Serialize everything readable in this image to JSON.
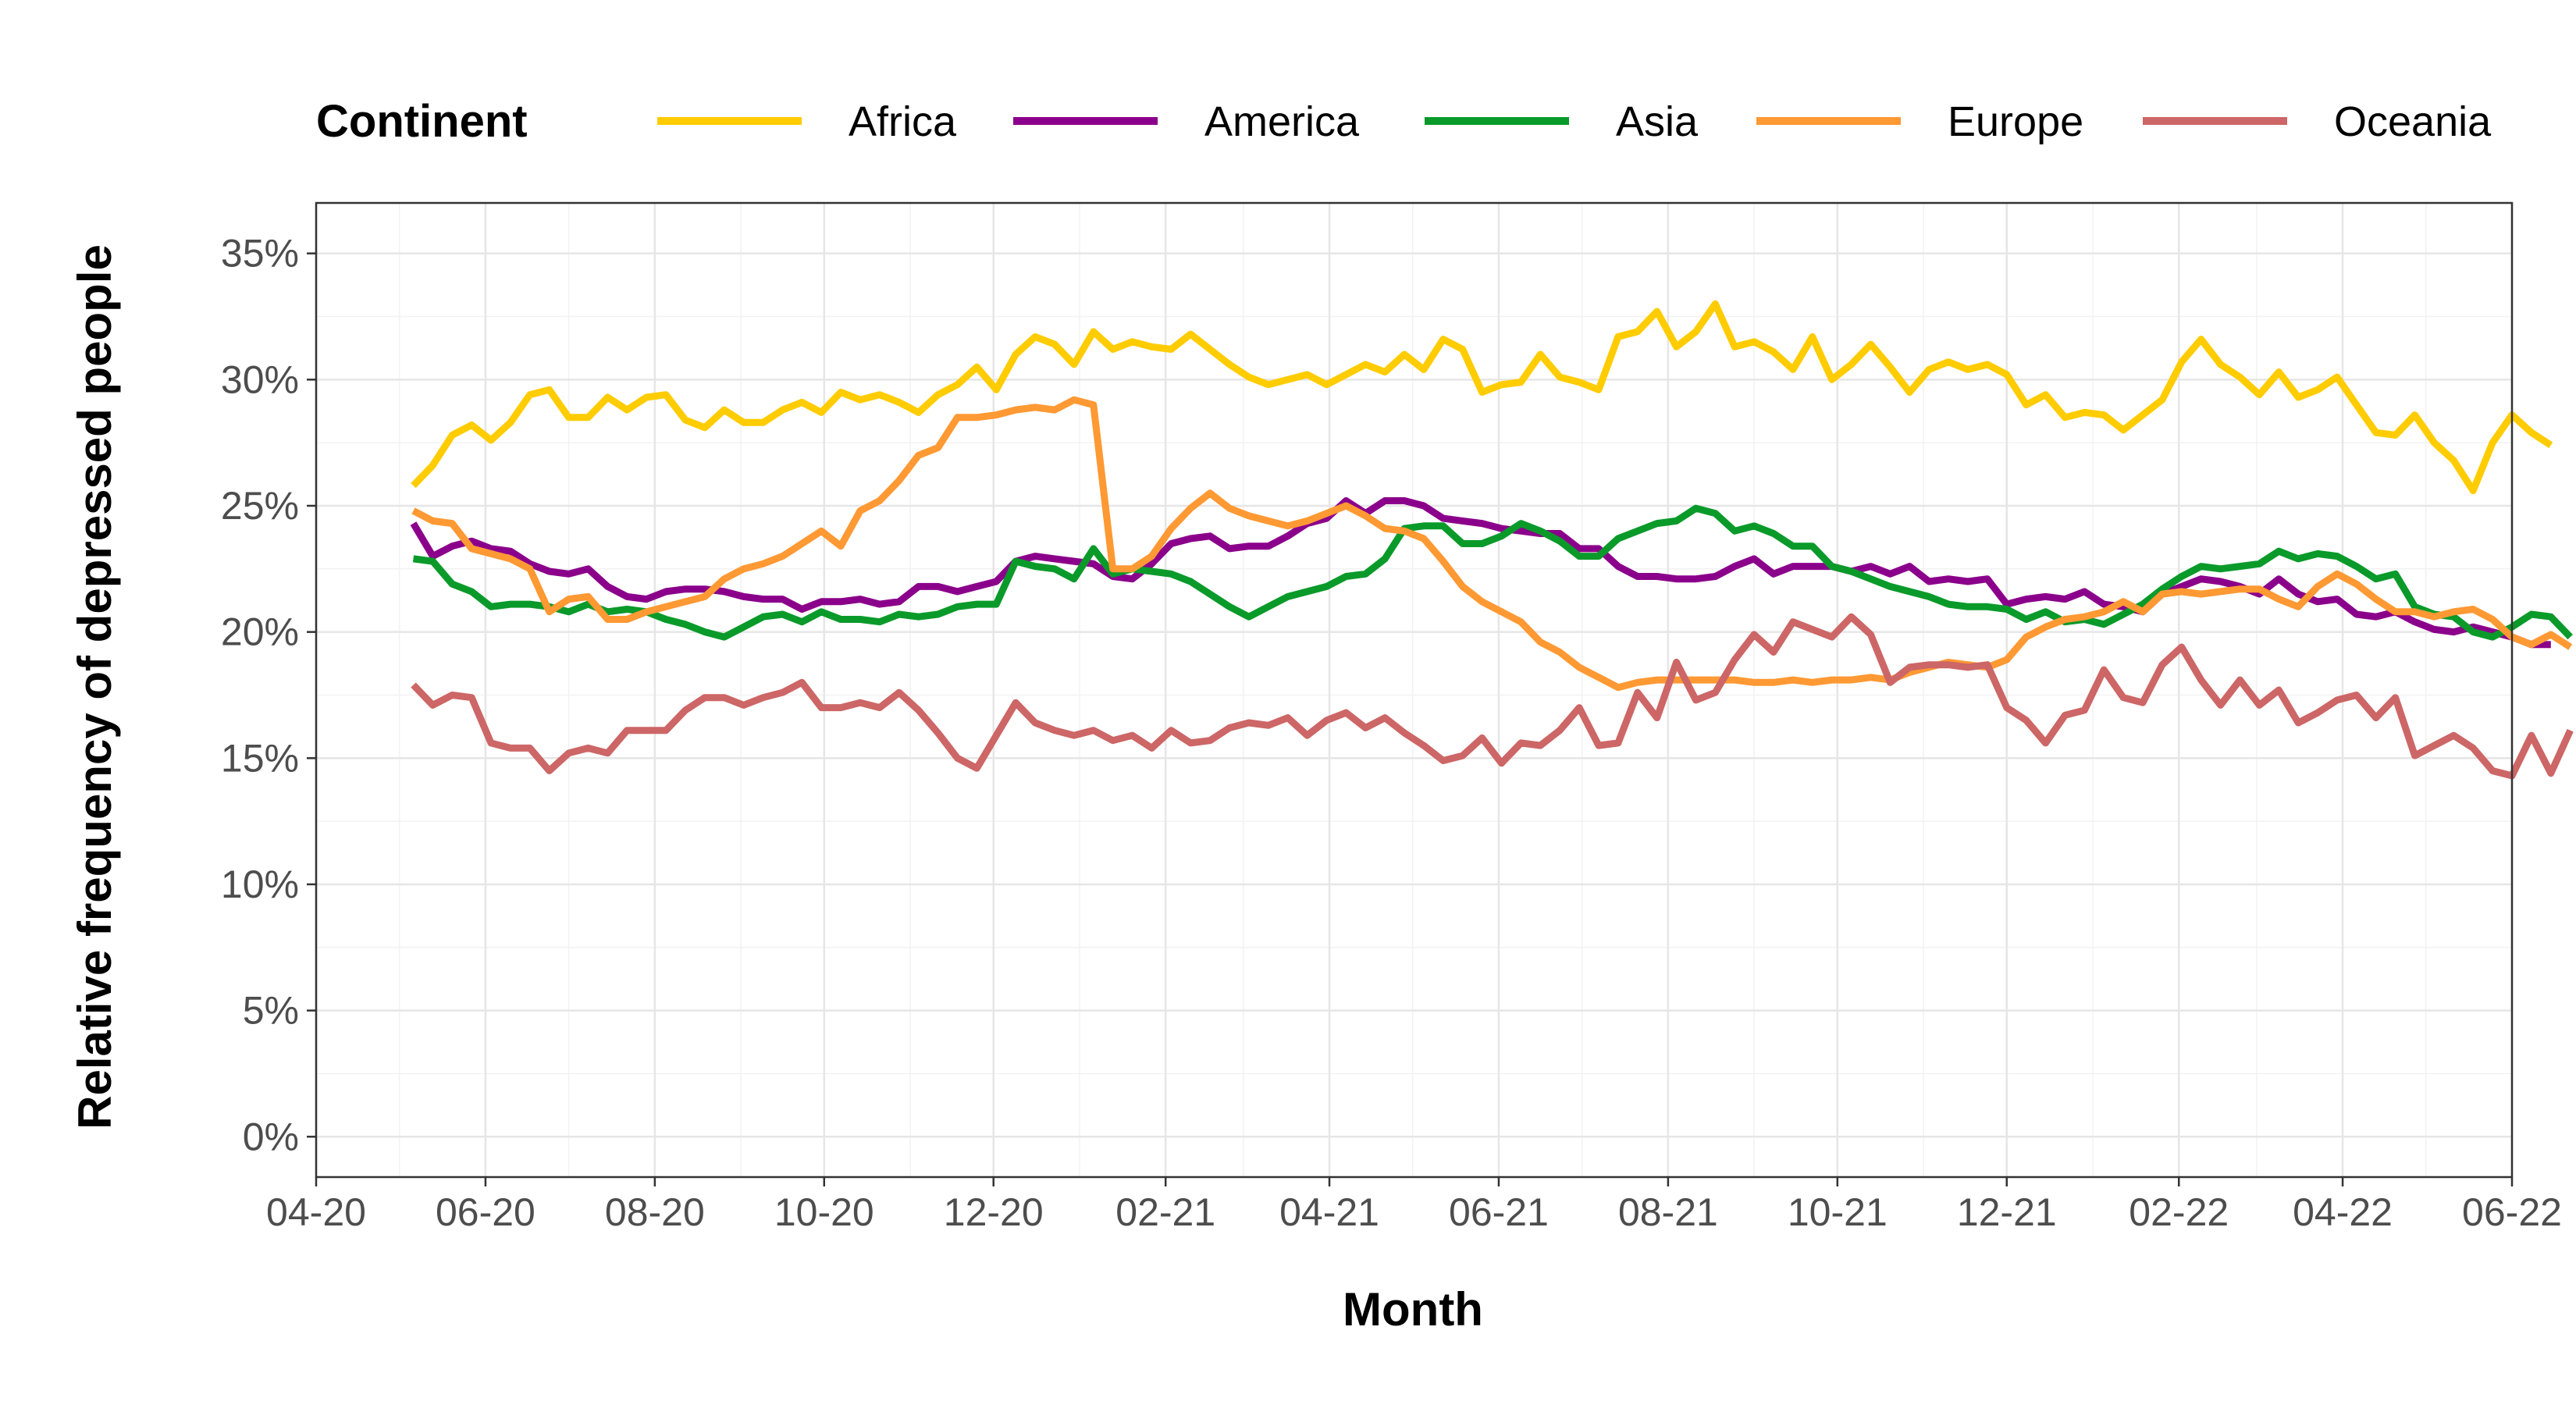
{
  "chart_data": {
    "type": "line",
    "xlabel": "Month",
    "ylabel": "Relative frequency of depressed people",
    "legend_title": "Continent",
    "legend_position": "top",
    "grid": true,
    "xlim": [
      "2020-04",
      "2022-06"
    ],
    "ylim": [
      -0.016,
      0.37
    ],
    "x_ticks": [
      "04-20",
      "06-20",
      "08-20",
      "10-20",
      "12-20",
      "02-21",
      "04-21",
      "06-21",
      "08-21",
      "10-21",
      "12-21",
      "02-22",
      "04-22",
      "06-22"
    ],
    "y_ticks": [
      "0%",
      "5%",
      "10%",
      "15%",
      "20%",
      "25%",
      "30%",
      "35%"
    ],
    "x_start": "2020-05-06",
    "x_step_days": 7,
    "series": [
      {
        "name": "Africa",
        "color": "#FFCC00",
        "values": [
          25.8,
          26.6,
          27.8,
          28.2,
          27.6,
          28.3,
          29.4,
          29.6,
          28.5,
          28.5,
          29.3,
          28.8,
          29.3,
          29.4,
          28.4,
          28.1,
          28.8,
          28.3,
          28.3,
          28.8,
          29.1,
          28.7,
          29.5,
          29.2,
          29.4,
          29.1,
          28.7,
          29.4,
          29.8,
          30.5,
          29.6,
          31.0,
          31.7,
          31.4,
          30.6,
          31.9,
          31.2,
          31.5,
          31.3,
          31.2,
          31.8,
          31.2,
          30.6,
          30.1,
          29.8,
          30.0,
          30.2,
          29.8,
          30.2,
          30.6,
          30.3,
          31.0,
          30.4,
          31.6,
          31.2,
          29.5,
          29.8,
          29.9,
          31.0,
          30.1,
          29.9,
          29.6,
          31.7,
          31.9,
          32.7,
          31.3,
          31.9,
          33.0,
          31.3,
          31.5,
          31.1,
          30.4,
          31.7,
          30.0,
          30.6,
          31.4,
          30.5,
          29.5,
          30.4,
          30.7,
          30.4,
          30.6,
          30.2,
          29.0,
          29.4,
          28.5,
          28.7,
          28.6,
          28.0,
          28.6,
          29.2,
          30.7,
          31.6,
          30.6,
          30.1,
          29.4,
          30.3,
          29.3,
          29.6,
          30.1,
          29.0,
          27.9,
          27.8,
          28.6,
          27.5,
          26.8,
          25.6,
          27.5,
          28.6,
          27.9,
          27.4
        ]
      },
      {
        "name": "America",
        "color": "#8B008B",
        "values": [
          24.3,
          23.0,
          23.4,
          23.6,
          23.3,
          23.2,
          22.7,
          22.4,
          22.3,
          22.5,
          21.8,
          21.4,
          21.3,
          21.6,
          21.7,
          21.7,
          21.6,
          21.4,
          21.3,
          21.3,
          20.9,
          21.2,
          21.2,
          21.3,
          21.1,
          21.2,
          21.8,
          21.8,
          21.6,
          21.8,
          22.0,
          22.8,
          23.0,
          22.9,
          22.8,
          22.7,
          22.2,
          22.1,
          22.7,
          23.5,
          23.7,
          23.8,
          23.3,
          23.4,
          23.4,
          23.8,
          24.3,
          24.5,
          25.2,
          24.7,
          25.2,
          25.2,
          25.0,
          24.5,
          24.4,
          24.3,
          24.1,
          24.0,
          23.9,
          23.9,
          23.3,
          23.3,
          22.6,
          22.2,
          22.2,
          22.1,
          22.1,
          22.2,
          22.6,
          22.9,
          22.3,
          22.6,
          22.6,
          22.6,
          22.4,
          22.6,
          22.3,
          22.6,
          22.0,
          22.1,
          22.0,
          22.1,
          21.1,
          21.3,
          21.4,
          21.3,
          21.6,
          21.1,
          21.0,
          20.8,
          21.5,
          21.8,
          22.1,
          22.0,
          21.8,
          21.5,
          22.1,
          21.5,
          21.2,
          21.3,
          20.7,
          20.6,
          20.8,
          20.4,
          20.1,
          20.0,
          20.2,
          20.0,
          19.8,
          19.5,
          19.5
        ]
      },
      {
        "name": "Asia",
        "color": "#0A9A2A",
        "values": [
          22.9,
          22.8,
          21.9,
          21.6,
          21.0,
          21.1,
          21.1,
          21.0,
          20.8,
          21.1,
          20.8,
          20.9,
          20.8,
          20.5,
          20.3,
          20.0,
          19.8,
          20.2,
          20.6,
          20.7,
          20.4,
          20.8,
          20.5,
          20.5,
          20.4,
          20.7,
          20.6,
          20.7,
          21.0,
          21.1,
          21.1,
          22.8,
          22.6,
          22.5,
          22.1,
          23.3,
          22.3,
          22.5,
          22.4,
          22.3,
          22.0,
          21.5,
          21.0,
          20.6,
          21.0,
          21.4,
          21.6,
          21.8,
          22.2,
          22.3,
          22.9,
          24.1,
          24.2,
          24.2,
          23.5,
          23.5,
          23.8,
          24.3,
          24.0,
          23.6,
          23.0,
          23.0,
          23.7,
          24.0,
          24.3,
          24.4,
          24.9,
          24.7,
          24.0,
          24.2,
          23.9,
          23.4,
          23.4,
          22.6,
          22.4,
          22.1,
          21.8,
          21.6,
          21.4,
          21.1,
          21.0,
          21.0,
          20.9,
          20.5,
          20.8,
          20.4,
          20.5,
          20.3,
          20.7,
          21.1,
          21.7,
          22.2,
          22.6,
          22.5,
          22.6,
          22.7,
          23.2,
          22.9,
          23.1,
          23.0,
          22.6,
          22.1,
          22.3,
          21.0,
          20.7,
          20.6,
          20.0,
          19.8,
          20.2,
          20.7,
          20.6,
          19.8
        ]
      },
      {
        "name": "Europe",
        "color": "#FF9933",
        "values": [
          24.8,
          24.4,
          24.3,
          23.3,
          23.1,
          22.9,
          22.5,
          20.8,
          21.3,
          21.4,
          20.5,
          20.5,
          20.8,
          21.0,
          21.2,
          21.4,
          22.1,
          22.5,
          22.7,
          23.0,
          23.5,
          24.0,
          23.4,
          24.8,
          25.2,
          26.0,
          27.0,
          27.3,
          28.5,
          28.5,
          28.6,
          28.8,
          28.9,
          28.8,
          29.2,
          29.0,
          22.5,
          22.5,
          23.0,
          24.1,
          24.9,
          25.5,
          24.9,
          24.6,
          24.4,
          24.2,
          24.4,
          24.7,
          25.0,
          24.6,
          24.1,
          24.0,
          23.7,
          22.8,
          21.8,
          21.2,
          20.8,
          20.4,
          19.6,
          19.2,
          18.6,
          18.2,
          17.8,
          18.0,
          18.1,
          18.1,
          18.1,
          18.1,
          18.1,
          18.0,
          18.0,
          18.1,
          18.0,
          18.1,
          18.1,
          18.2,
          18.1,
          18.4,
          18.6,
          18.8,
          18.7,
          18.6,
          18.9,
          19.8,
          20.2,
          20.5,
          20.6,
          20.8,
          21.2,
          20.8,
          21.5,
          21.6,
          21.5,
          21.6,
          21.7,
          21.7,
          21.3,
          21.0,
          21.8,
          22.3,
          21.9,
          21.3,
          20.8,
          20.8,
          20.6,
          20.8,
          20.9,
          20.5,
          19.8,
          19.5,
          19.9,
          19.4
        ]
      },
      {
        "name": "Oceania",
        "color": "#CD6666",
        "values": [
          17.9,
          17.1,
          17.5,
          17.4,
          15.6,
          15.4,
          15.4,
          14.5,
          15.2,
          15.4,
          15.2,
          16.1,
          16.1,
          16.1,
          16.9,
          17.4,
          17.4,
          17.1,
          17.4,
          17.6,
          18.0,
          17.0,
          17.0,
          17.2,
          17.0,
          17.6,
          16.9,
          16.0,
          15.0,
          14.6,
          15.9,
          17.2,
          16.4,
          16.1,
          15.9,
          16.1,
          15.7,
          15.9,
          15.4,
          16.1,
          15.6,
          15.7,
          16.2,
          16.4,
          16.3,
          16.6,
          15.9,
          16.5,
          16.8,
          16.2,
          16.6,
          16.0,
          15.5,
          14.9,
          15.1,
          15.8,
          14.8,
          15.6,
          15.5,
          16.1,
          17.0,
          15.5,
          15.6,
          17.6,
          16.6,
          18.8,
          17.3,
          17.6,
          18.9,
          19.9,
          19.2,
          20.4,
          20.1,
          19.8,
          20.6,
          19.9,
          18.0,
          18.6,
          18.7,
          18.7,
          18.6,
          18.7,
          17.0,
          16.5,
          15.6,
          16.7,
          16.9,
          18.5,
          17.4,
          17.2,
          18.7,
          19.4,
          18.1,
          17.1,
          18.1,
          17.1,
          17.7,
          16.4,
          16.8,
          17.3,
          17.5,
          16.6,
          17.4,
          15.1,
          15.5,
          15.9,
          15.4,
          14.5,
          14.3,
          15.9,
          14.4,
          16.1
        ]
      }
    ]
  }
}
